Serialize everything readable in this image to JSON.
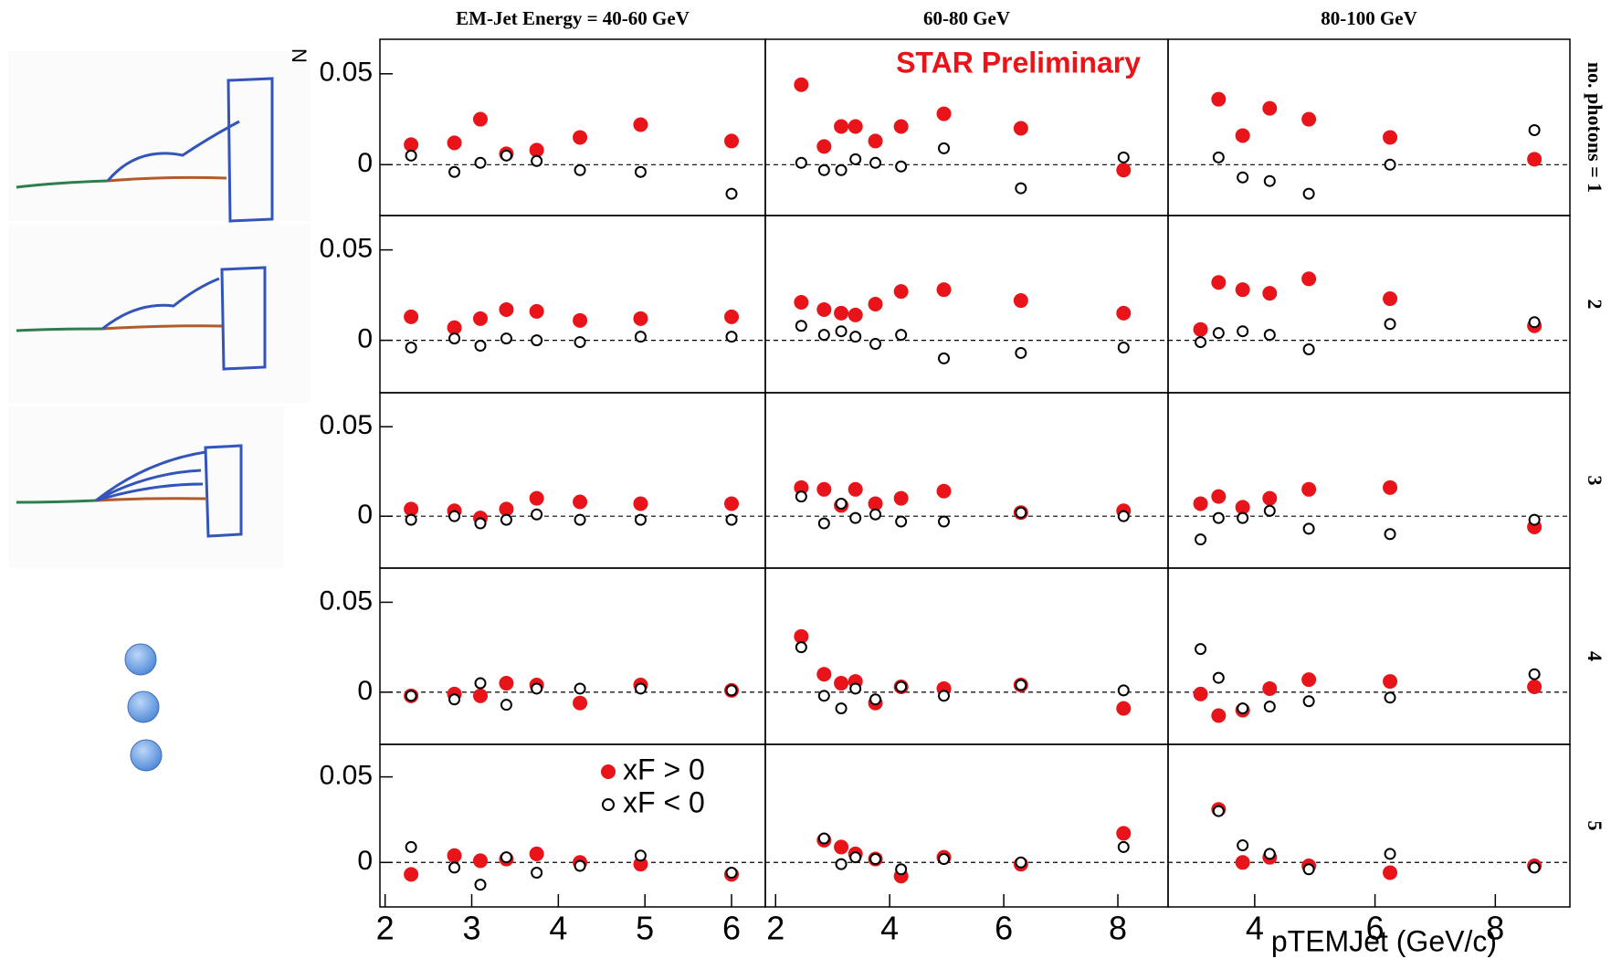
{
  "chart_data": [
    {
      "type": "scatter",
      "title": "EM-Jet Energy = 40-60 GeV",
      "y_label": "N",
      "x": [
        2.3,
        2.8,
        3.1,
        3.4,
        3.75,
        4.25,
        4.95,
        6.0
      ],
      "xlim": [
        1.94,
        6.39
      ],
      "ylim": [
        -0.028,
        0.069
      ],
      "yticks": [
        0,
        0.05
      ],
      "zero_line": true,
      "series": [
        {
          "color": "#e8141a",
          "marker": "filled",
          "values": [
            0.011,
            0.012,
            0.025,
            0.006,
            0.008,
            0.015,
            0.022,
            0.013
          ]
        },
        {
          "color": "#000000",
          "marker": "open",
          "values": [
            0.005,
            -0.004,
            0.001,
            0.005,
            0.002,
            -0.003,
            -0.004,
            -0.016
          ]
        }
      ]
    },
    {
      "type": "scatter",
      "title": "60-80 GeV",
      "annotation": "STAR Preliminary",
      "x": [
        2.45,
        2.85,
        3.15,
        3.4,
        3.75,
        4.2,
        4.95,
        6.3,
        8.1
      ],
      "xlim": [
        1.82,
        8.88
      ],
      "ylim": [
        -0.028,
        0.069
      ],
      "zero_line": true,
      "series": [
        {
          "color": "#e8141a",
          "marker": "filled",
          "values": [
            0.044,
            0.01,
            0.021,
            0.021,
            0.013,
            0.021,
            0.028,
            0.02,
            -0.003
          ]
        },
        {
          "color": "#000000",
          "marker": "open",
          "values": [
            0.001,
            -0.003,
            -0.003,
            0.003,
            0.001,
            -0.001,
            0.009,
            -0.013,
            0.004
          ]
        }
      ]
    },
    {
      "type": "scatter",
      "title": "80-100 GeV",
      "row_label": "no. photons = 1",
      "x": [
        3.1,
        3.4,
        3.8,
        4.25,
        4.9,
        6.25,
        8.65
      ],
      "xlim": [
        2.56,
        9.24
      ],
      "ylim": [
        -0.028,
        0.069
      ],
      "zero_line": true,
      "series": [
        {
          "color": "#e8141a",
          "marker": "filled",
          "values": [
            null,
            0.036,
            0.016,
            0.031,
            0.025,
            0.015,
            0.003
          ]
        },
        {
          "color": "#000000",
          "marker": "open",
          "values": [
            null,
            0.004,
            -0.007,
            -0.009,
            -0.016,
            0.0,
            0.019
          ]
        }
      ]
    },
    {
      "type": "scatter",
      "x": [
        2.3,
        2.8,
        3.1,
        3.4,
        3.75,
        4.25,
        4.95,
        6.0
      ],
      "xlim": [
        1.94,
        6.39
      ],
      "ylim": [
        -0.029,
        0.069
      ],
      "yticks": [
        0,
        0.05
      ],
      "zero_line": true,
      "series": [
        {
          "color": "#e8141a",
          "marker": "filled",
          "values": [
            0.013,
            0.007,
            0.012,
            0.017,
            0.016,
            0.011,
            0.012,
            0.013
          ]
        },
        {
          "color": "#000000",
          "marker": "open",
          "values": [
            -0.004,
            0.001,
            -0.003,
            0.001,
            0.0,
            -0.001,
            0.002,
            0.002
          ]
        }
      ]
    },
    {
      "type": "scatter",
      "x": [
        2.45,
        2.85,
        3.15,
        3.4,
        3.75,
        4.2,
        4.95,
        6.3,
        8.1
      ],
      "xlim": [
        1.82,
        8.88
      ],
      "ylim": [
        -0.029,
        0.069
      ],
      "zero_line": true,
      "series": [
        {
          "color": "#e8141a",
          "marker": "filled",
          "values": [
            0.021,
            0.017,
            0.015,
            0.014,
            0.02,
            0.027,
            0.028,
            0.022,
            0.015
          ]
        },
        {
          "color": "#000000",
          "marker": "open",
          "values": [
            0.008,
            0.003,
            0.005,
            0.002,
            -0.002,
            0.003,
            -0.01,
            -0.007,
            -0.004
          ]
        }
      ]
    },
    {
      "type": "scatter",
      "row_label": "2",
      "x": [
        3.1,
        3.4,
        3.8,
        4.25,
        4.9,
        6.25,
        8.65
      ],
      "xlim": [
        2.56,
        9.24
      ],
      "ylim": [
        -0.029,
        0.069
      ],
      "zero_line": true,
      "series": [
        {
          "color": "#e8141a",
          "marker": "filled",
          "values": [
            0.006,
            0.032,
            0.028,
            0.026,
            0.034,
            0.023,
            0.008
          ]
        },
        {
          "color": "#000000",
          "marker": "open",
          "values": [
            -0.001,
            0.004,
            0.005,
            0.003,
            -0.005,
            0.009,
            0.01
          ]
        }
      ]
    },
    {
      "type": "scatter",
      "x": [
        2.3,
        2.8,
        3.1,
        3.4,
        3.75,
        4.25,
        4.95,
        6.0
      ],
      "xlim": [
        1.94,
        6.39
      ],
      "ylim": [
        -0.029,
        0.069
      ],
      "yticks": [
        0,
        0.05
      ],
      "zero_line": true,
      "series": [
        {
          "color": "#e8141a",
          "marker": "filled",
          "values": [
            0.004,
            0.003,
            -0.001,
            0.004,
            0.01,
            0.008,
            0.007,
            0.007
          ]
        },
        {
          "color": "#000000",
          "marker": "open",
          "values": [
            -0.002,
            0.0,
            -0.004,
            -0.002,
            0.001,
            -0.002,
            -0.002,
            -0.002
          ]
        }
      ]
    },
    {
      "type": "scatter",
      "x": [
        2.45,
        2.85,
        3.15,
        3.4,
        3.75,
        4.2,
        4.95,
        6.3,
        8.1
      ],
      "xlim": [
        1.82,
        8.88
      ],
      "ylim": [
        -0.029,
        0.069
      ],
      "zero_line": true,
      "series": [
        {
          "color": "#e8141a",
          "marker": "filled",
          "values": [
            0.016,
            0.015,
            0.006,
            0.015,
            0.007,
            0.01,
            0.014,
            0.002,
            0.003
          ]
        },
        {
          "color": "#000000",
          "marker": "open",
          "values": [
            0.011,
            -0.004,
            0.007,
            -0.001,
            0.001,
            -0.003,
            -0.003,
            0.002,
            0.0
          ]
        }
      ]
    },
    {
      "type": "scatter",
      "row_label": "3",
      "x": [
        3.1,
        3.4,
        3.8,
        4.25,
        4.9,
        6.25,
        8.65
      ],
      "xlim": [
        2.56,
        9.24
      ],
      "ylim": [
        -0.029,
        0.069
      ],
      "zero_line": true,
      "series": [
        {
          "color": "#e8141a",
          "marker": "filled",
          "values": [
            0.007,
            0.011,
            0.005,
            0.01,
            0.015,
            0.016,
            -0.006
          ]
        },
        {
          "color": "#000000",
          "marker": "open",
          "values": [
            -0.013,
            -0.001,
            -0.001,
            0.003,
            -0.007,
            -0.01,
            -0.002
          ]
        }
      ]
    },
    {
      "type": "scatter",
      "x": [
        2.3,
        2.8,
        3.1,
        3.4,
        3.75,
        4.25,
        4.95,
        6.0
      ],
      "xlim": [
        1.94,
        6.39
      ],
      "ylim": [
        -0.029,
        0.069
      ],
      "yticks": [
        0,
        0.05
      ],
      "zero_line": true,
      "series": [
        {
          "color": "#e8141a",
          "marker": "filled",
          "values": [
            -0.002,
            -0.001,
            -0.002,
            0.005,
            0.004,
            -0.006,
            0.004,
            0.001
          ]
        },
        {
          "color": "#000000",
          "marker": "open",
          "values": [
            -0.002,
            -0.004,
            0.005,
            -0.007,
            0.002,
            0.002,
            0.002,
            0.001
          ]
        }
      ]
    },
    {
      "type": "scatter",
      "x": [
        2.45,
        2.85,
        3.15,
        3.4,
        3.75,
        4.2,
        4.95,
        6.3,
        8.1
      ],
      "xlim": [
        1.82,
        8.88
      ],
      "ylim": [
        -0.029,
        0.069
      ],
      "zero_line": true,
      "series": [
        {
          "color": "#e8141a",
          "marker": "filled",
          "values": [
            0.031,
            0.01,
            0.005,
            0.006,
            -0.006,
            0.003,
            0.002,
            0.004,
            -0.009
          ]
        },
        {
          "color": "#000000",
          "marker": "open",
          "values": [
            0.025,
            -0.002,
            -0.009,
            0.002,
            -0.004,
            0.003,
            -0.002,
            0.004,
            0.001
          ]
        }
      ]
    },
    {
      "type": "scatter",
      "row_label": "4",
      "x": [
        3.1,
        3.4,
        3.8,
        4.25,
        4.9,
        6.25,
        8.65
      ],
      "xlim": [
        2.56,
        9.24
      ],
      "ylim": [
        -0.029,
        0.069
      ],
      "zero_line": true,
      "series": [
        {
          "color": "#e8141a",
          "marker": "filled",
          "values": [
            -0.001,
            -0.013,
            -0.01,
            0.002,
            0.007,
            0.006,
            0.003
          ]
        },
        {
          "color": "#000000",
          "marker": "open",
          "values": [
            0.024,
            0.008,
            -0.009,
            -0.008,
            -0.005,
            -0.003,
            0.01
          ]
        }
      ]
    },
    {
      "type": "scatter",
      "x": [
        2.3,
        2.8,
        3.1,
        3.4,
        3.75,
        4.25,
        4.95,
        6.0
      ],
      "xlim": [
        1.94,
        6.39
      ],
      "ylim": [
        -0.026,
        0.069
      ],
      "yticks": [
        0,
        0.05
      ],
      "xticks": [
        2,
        3,
        4,
        5,
        6
      ],
      "zero_line": true,
      "legend": "upper right",
      "series": [
        {
          "name": "xF > 0",
          "color": "#e8141a",
          "marker": "filled",
          "values": [
            -0.007,
            0.004,
            0.001,
            0.002,
            0.005,
            0.0,
            -0.001,
            -0.007
          ]
        },
        {
          "name": "xF < 0",
          "color": "#000000",
          "marker": "open",
          "values": [
            0.009,
            -0.003,
            -0.013,
            0.003,
            -0.006,
            -0.002,
            0.004,
            -0.006
          ]
        }
      ]
    },
    {
      "type": "scatter",
      "x": [
        2.45,
        2.85,
        3.15,
        3.4,
        3.75,
        4.2,
        4.95,
        6.3,
        8.1
      ],
      "xlim": [
        1.82,
        8.88
      ],
      "ylim": [
        -0.026,
        0.069
      ],
      "xticks": [
        2,
        4,
        6,
        8
      ],
      "zero_line": true,
      "series": [
        {
          "color": "#e8141a",
          "marker": "filled",
          "values": [
            null,
            0.013,
            0.009,
            0.005,
            0.002,
            -0.008,
            0.003,
            -0.001,
            0.017
          ]
        },
        {
          "color": "#000000",
          "marker": "open",
          "values": [
            null,
            0.014,
            -0.001,
            0.003,
            0.002,
            -0.004,
            0.002,
            0.0,
            0.009
          ]
        }
      ]
    },
    {
      "type": "scatter",
      "row_label": "5",
      "x_label": "pTEMJet (GeV/c)",
      "x": [
        3.1,
        3.4,
        3.8,
        4.25,
        4.9,
        6.25,
        8.65
      ],
      "xlim": [
        2.56,
        9.24
      ],
      "ylim": [
        -0.026,
        0.069
      ],
      "xticks": [
        4,
        6,
        8
      ],
      "zero_line": true,
      "series": [
        {
          "color": "#e8141a",
          "marker": "filled",
          "values": [
            null,
            0.031,
            0.0,
            0.003,
            -0.002,
            -0.006,
            -0.002
          ]
        },
        {
          "color": "#000000",
          "marker": "open",
          "values": [
            null,
            0.03,
            0.01,
            0.005,
            -0.004,
            0.005,
            -0.003
          ]
        }
      ]
    }
  ]
}
